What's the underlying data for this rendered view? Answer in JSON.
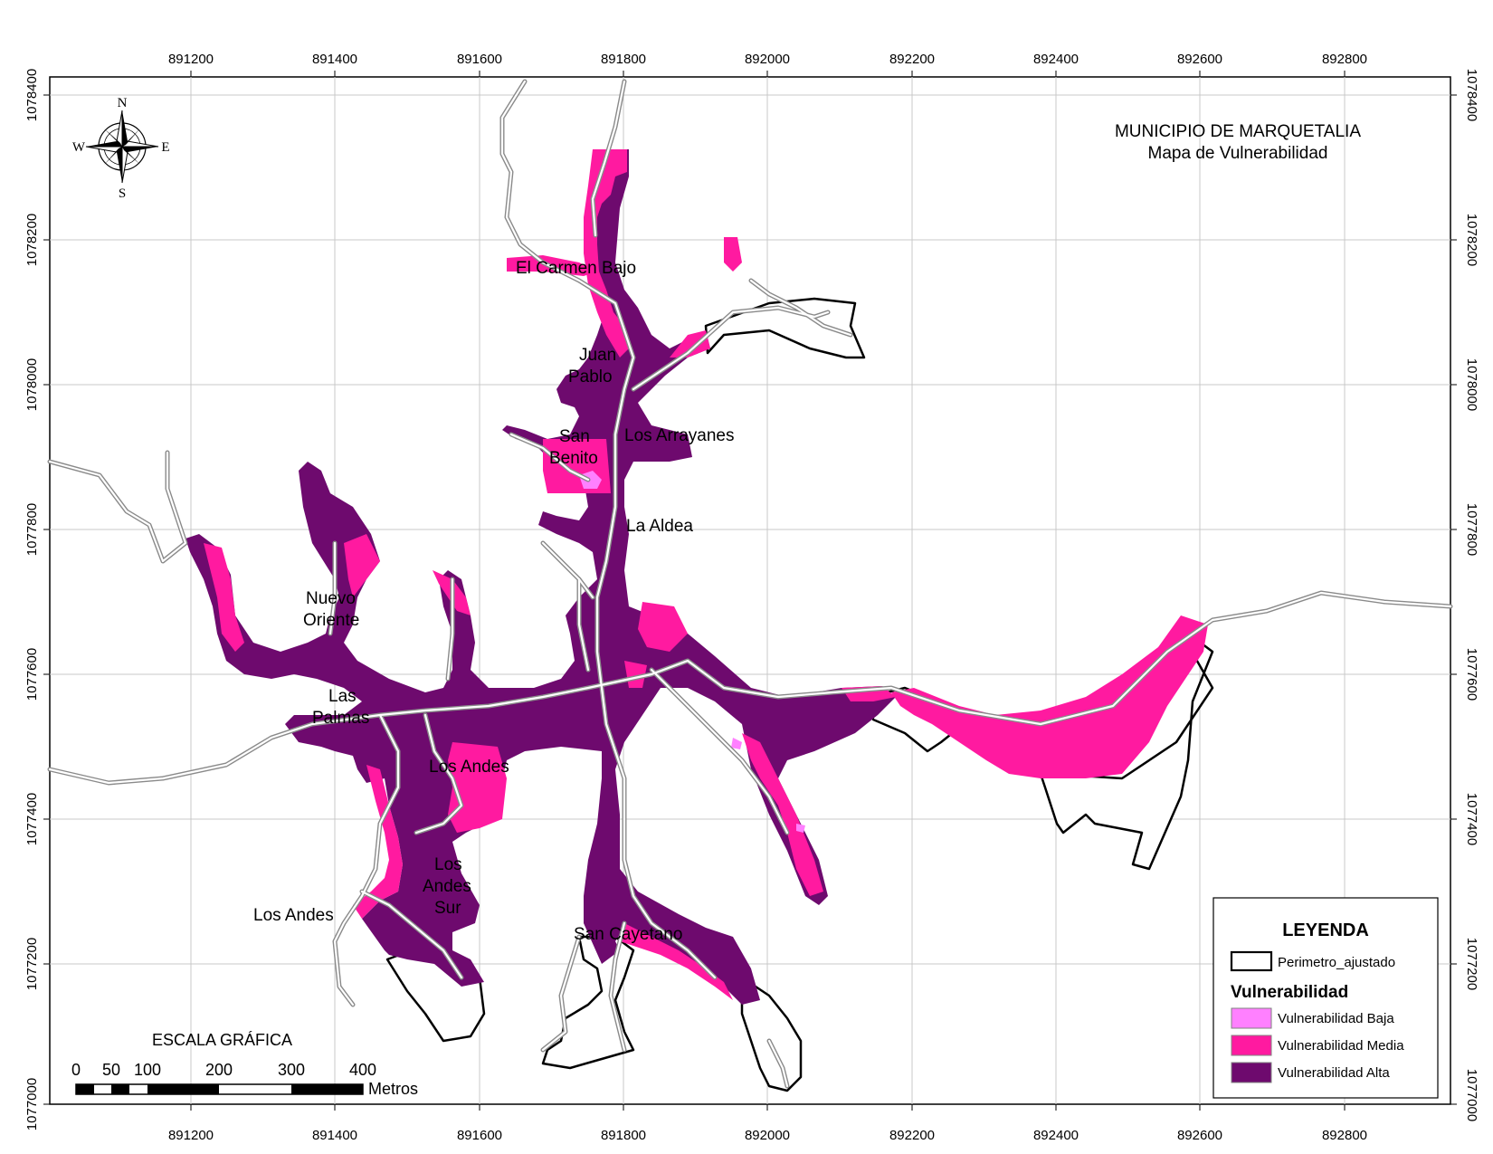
{
  "title": {
    "line1": "MUNICIPIO DE MARQUETALIA",
    "line2": "Mapa de Vulnerabilidad"
  },
  "axes": {
    "x_ticks": [
      "891200",
      "891400",
      "891600",
      "891800",
      "892000",
      "892200",
      "892400",
      "892600",
      "892800"
    ],
    "y_ticks": [
      "1078400",
      "1078200",
      "1078000",
      "1077800",
      "1077600",
      "1077400",
      "1077200",
      "1077000"
    ]
  },
  "compass": {
    "n": "N",
    "s": "S",
    "e": "E",
    "w": "W"
  },
  "places": [
    "El Carmen Bajo",
    "Juan",
    "Pablo",
    "San",
    "Benito",
    "Los Arrayanes",
    "La Aldea",
    "Nuevo",
    "Oriente",
    "Las",
    "Palmas",
    "Los Andes",
    "Los",
    "Andes",
    "Sur",
    "Los Andes",
    "San Cayetano"
  ],
  "legend": {
    "title": "LEYENDA",
    "perimeter": "Perimetro_ajustado",
    "subtitle": "Vulnerabilidad",
    "items": [
      {
        "label": "Vulnerabilidad Baja",
        "color": "#ff80ff"
      },
      {
        "label": "Vulnerabilidad Media",
        "color": "#ff1aa0"
      },
      {
        "label": "Vulnerabilidad Alta",
        "color": "#6e0a6e"
      }
    ]
  },
  "scale": {
    "title": "ESCALA GRÁFICA",
    "labels": [
      "0",
      "50",
      "100",
      "200",
      "300",
      "400"
    ],
    "unit": "Metros"
  },
  "colors": {
    "alta": "#6e0a6e",
    "media": "#ff1aa0",
    "baja": "#ff80ff",
    "road": "#a0a0a0",
    "grid": "#c8c8c8"
  }
}
